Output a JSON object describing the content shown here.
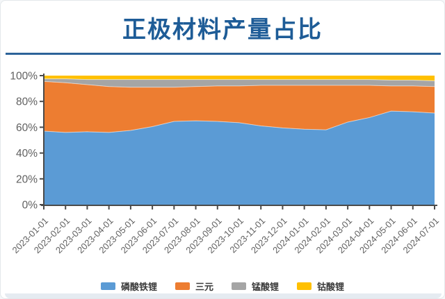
{
  "page": {
    "title": "正极材料产量占比"
  },
  "colors": {
    "title": "#1E5C97",
    "divider": "#2D6399",
    "bottom_strip": "#e5ebf1"
  },
  "chart_data": {
    "type": "area",
    "stacked": true,
    "percent": true,
    "title": "正极材料产量占比",
    "xlabel": "",
    "ylabel": "",
    "ylim": [
      0,
      100
    ],
    "yticks": [
      0,
      20,
      40,
      60,
      80,
      100
    ],
    "ytick_suffix": "%",
    "grid": false,
    "legend_position": "bottom",
    "x": [
      "2023-01-01",
      "2023-02-01",
      "2023-03-01",
      "2023-04-01",
      "2023-05-01",
      "2023-06-01",
      "2023-07-01",
      "2023-08-01",
      "2023-09-01",
      "2023-10-01",
      "2023-11-01",
      "2023-12-01",
      "2024-01-01",
      "2024-02-01",
      "2024-03-01",
      "2024-04-01",
      "2024-05-01",
      "2024-06-01",
      "2024-07-01"
    ],
    "series": [
      {
        "id": "lfp",
        "name": "磷酸铁锂",
        "color": "#5B9BD5",
        "values": [
          57,
          56,
          56.5,
          56,
          57.5,
          60.5,
          64.5,
          65,
          64.5,
          63.5,
          61,
          59.5,
          58.5,
          58,
          64,
          67.5,
          72.5,
          72,
          71
        ]
      },
      {
        "id": "ternary",
        "name": "三元",
        "color": "#ED7D31",
        "values": [
          38.5,
          38.5,
          36.5,
          35.5,
          33.5,
          30.5,
          26.5,
          26.5,
          27.5,
          28.5,
          31.5,
          33,
          34,
          34.5,
          28.5,
          25,
          19.5,
          20,
          20.5
        ]
      },
      {
        "id": "lmo",
        "name": "锰酸锂",
        "color": "#A5A5A5",
        "values": [
          2,
          3,
          4,
          5.5,
          6,
          6,
          6,
          5.5,
          5,
          5,
          4.5,
          4.5,
          4.5,
          4.5,
          4.5,
          4.5,
          4.5,
          4.5,
          4.5
        ]
      },
      {
        "id": "lco",
        "name": "钴酸锂",
        "color": "#FFC000",
        "values": [
          2.5,
          2.5,
          3,
          3,
          3,
          3,
          3,
          3,
          3,
          3,
          3,
          3,
          3,
          3,
          3,
          3,
          3.5,
          3.5,
          4
        ]
      }
    ],
    "style": {
      "axis_color": "#4a4a4a",
      "tick_label_color": "#616161",
      "boundary_line_color": "rgba(255,255,255,0.55)"
    }
  }
}
